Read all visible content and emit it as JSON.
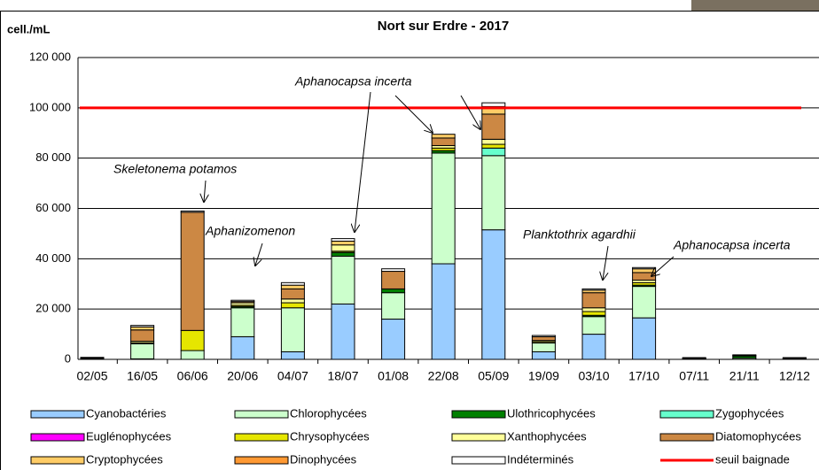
{
  "chart_data": {
    "type": "stacked_bar",
    "title": "Nort  sur Erdre - 2017",
    "y_label": "cell./mL",
    "categories": [
      "02/05",
      "16/05",
      "06/06",
      "20/06",
      "04/07",
      "18/07",
      "01/08",
      "22/08",
      "05/09",
      "19/09",
      "03/10",
      "17/10",
      "07/11",
      "21/11",
      "12/12"
    ],
    "series": [
      {
        "name": "Cyanobactéries",
        "color": "#99ccff",
        "values": [
          0,
          200,
          0,
          9000,
          3000,
          22000,
          16000,
          38000,
          51500,
          3000,
          10000,
          16500,
          0,
          0,
          0
        ]
      },
      {
        "name": "Chlorophycées",
        "color": "#ccffcc",
        "values": [
          300,
          6000,
          3500,
          11500,
          17500,
          19000,
          10500,
          44000,
          29500,
          3500,
          7000,
          12500,
          300,
          500,
          300
        ]
      },
      {
        "name": "Ulothricophycées",
        "color": "#008000",
        "values": [
          0,
          0,
          0,
          500,
          0,
          1500,
          1500,
          1000,
          0,
          0,
          500,
          500,
          0,
          800,
          0
        ]
      },
      {
        "name": "Zygophycées",
        "color": "#66ffcc",
        "values": [
          0,
          0,
          0,
          0,
          0,
          0,
          0,
          0,
          3000,
          0,
          0,
          0,
          0,
          0,
          0
        ]
      },
      {
        "name": "Euglénophycées",
        "color": "#ff00ff",
        "values": [
          0,
          0,
          0,
          0,
          0,
          0,
          0,
          0,
          0,
          0,
          0,
          0,
          0,
          0,
          0
        ]
      },
      {
        "name": "Chrysophycées",
        "color": "#e6e600",
        "values": [
          0,
          400,
          8000,
          500,
          2000,
          500,
          0,
          1000,
          1500,
          500,
          1500,
          1000,
          0,
          0,
          0
        ]
      },
      {
        "name": "Xanthophycées",
        "color": "#ffff99",
        "values": [
          0,
          600,
          0,
          1000,
          1500,
          2500,
          0,
          1000,
          2000,
          500,
          1500,
          1000,
          0,
          0,
          0
        ]
      },
      {
        "name": "Diatomophycées",
        "color": "#cc8844",
        "values": [
          300,
          4500,
          47000,
          500,
          4000,
          0,
          7000,
          3000,
          10000,
          1500,
          6000,
          3000,
          200,
          300,
          200
        ]
      },
      {
        "name": "Cryptophycées",
        "color": "#ffcc66",
        "values": [
          0,
          1200,
          0,
          0,
          1500,
          1500,
          0,
          1500,
          3000,
          0,
          1000,
          1500,
          0,
          0,
          0
        ]
      },
      {
        "name": "Dinophycées",
        "color": "#ff9933",
        "values": [
          0,
          0,
          0,
          0,
          0,
          0,
          0,
          0,
          0,
          0,
          0,
          0,
          0,
          0,
          0
        ]
      },
      {
        "name": "Indéterminés",
        "color": "#ffffff",
        "values": [
          200,
          600,
          500,
          500,
          1000,
          1000,
          1000,
          0,
          1500,
          500,
          500,
          500,
          200,
          200,
          200
        ]
      }
    ],
    "threshold": {
      "name": "seuil baignade",
      "color": "#ff0000",
      "value": 100000
    },
    "ylim": [
      0,
      120000
    ],
    "yticks": [
      0,
      {
        "value": 20000,
        "label": "20 000"
      },
      {
        "value": 40000,
        "label": "40 000"
      },
      {
        "value": 60000,
        "label": "60 000"
      },
      {
        "value": 80000,
        "label": "80 000"
      },
      {
        "value": 100000,
        "label": "100 000"
      },
      {
        "value": 120000,
        "label": "120 000"
      }
    ],
    "grid": true,
    "annotations": [
      "Skeletonema potamos",
      "Aphanizomenon",
      "Aphanocapsa incerta",
      "Planktothrix agardhii",
      "Aphanocapsa incerta"
    ]
  }
}
